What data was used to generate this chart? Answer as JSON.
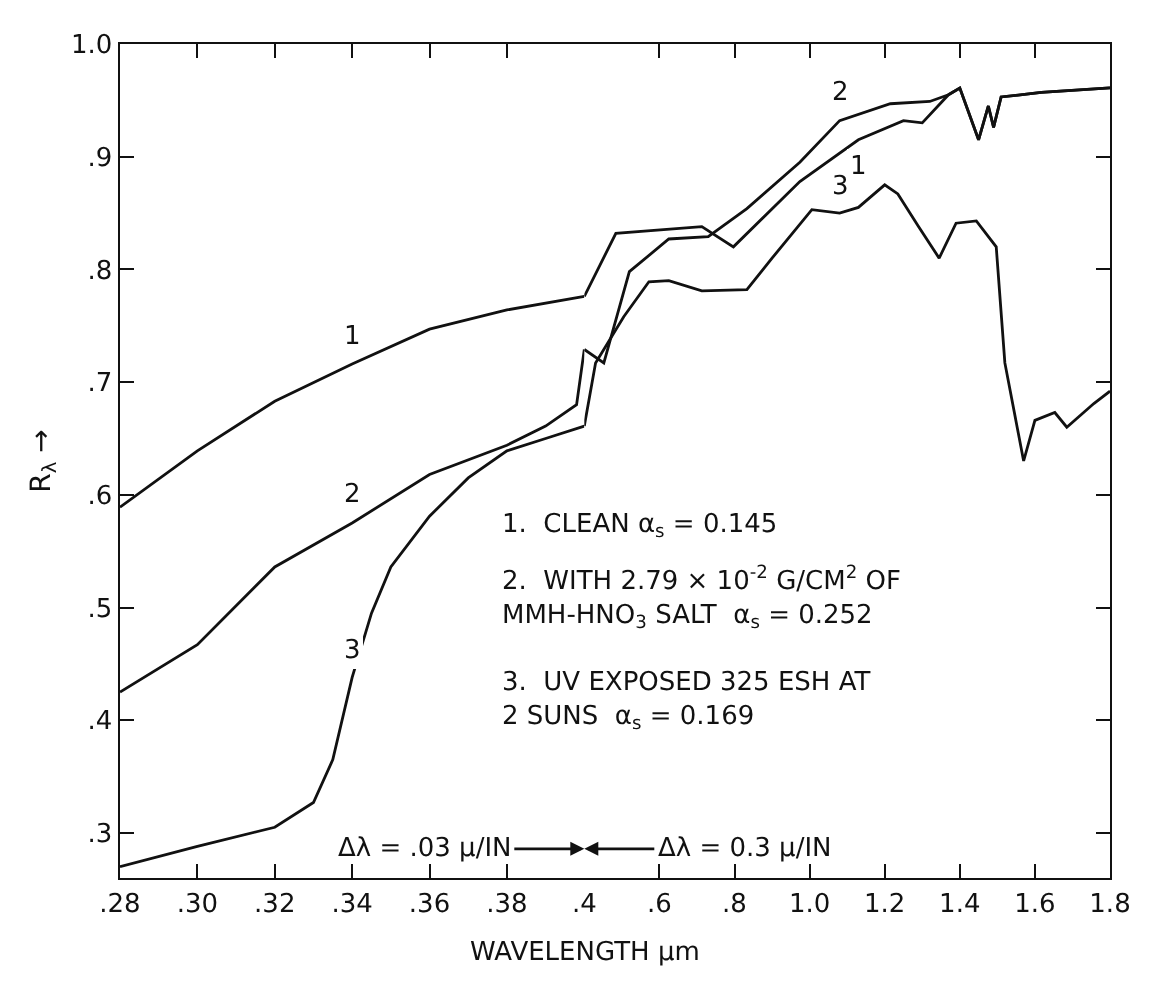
{
  "chart_data": [
    {
      "type": "line",
      "xlabel": "WAVELENGTH µm",
      "ylabel": "R$_{λ}$ →",
      "xlim": [
        0.28,
        0.4
      ],
      "ylim": [
        0.26,
        1.0
      ],
      "xticks": [
        {
          "value": 0.28,
          "label": ".28"
        },
        {
          "value": 0.3,
          "label": ".30"
        },
        {
          "value": 0.32,
          "label": ".32"
        },
        {
          "value": 0.34,
          "label": ".34"
        },
        {
          "value": 0.36,
          "label": ".36"
        },
        {
          "value": 0.38,
          "label": ".38"
        }
      ],
      "yticks": [
        {
          "value": 0.3,
          "label": ".3"
        },
        {
          "value": 0.4,
          "label": ".4"
        },
        {
          "value": 0.5,
          "label": ".5"
        },
        {
          "value": 0.6,
          "label": ".6"
        },
        {
          "value": 0.7,
          "label": ".7"
        },
        {
          "value": 0.8,
          "label": ".8"
        },
        {
          "value": 0.9,
          "label": ".9"
        },
        {
          "value": 1.0,
          "label": "1.0"
        }
      ],
      "series": [
        {
          "name": "1",
          "color": "#111111",
          "x": [
            0.28,
            0.3,
            0.32,
            0.34,
            0.36,
            0.38,
            0.4
          ],
          "values": [
            0.589,
            0.639,
            0.683,
            0.716,
            0.747,
            0.764,
            0.776
          ]
        },
        {
          "name": "2",
          "color": "#111111",
          "x": [
            0.28,
            0.3,
            0.32,
            0.34,
            0.36,
            0.38,
            0.39,
            0.398,
            0.4
          ],
          "values": [
            0.425,
            0.467,
            0.536,
            0.575,
            0.618,
            0.644,
            0.661,
            0.68,
            0.729
          ]
        },
        {
          "name": "3",
          "color": "#111111",
          "x": [
            0.28,
            0.3,
            0.32,
            0.33,
            0.335,
            0.34,
            0.345,
            0.35,
            0.36,
            0.37,
            0.38,
            0.39,
            0.4
          ],
          "values": [
            0.27,
            0.288,
            0.305,
            0.327,
            0.365,
            0.438,
            0.495,
            0.536,
            0.581,
            0.615,
            0.639,
            0.65,
            0.661
          ]
        }
      ],
      "annotations": [
        "Δλ = .03 µ/IN"
      ]
    },
    {
      "type": "line",
      "xlim": [
        0.4,
        1.8
      ],
      "ylim": [
        0.26,
        1.0
      ],
      "tick_labels": "x",
      "xticks": [
        {
          "value": 0.4,
          "label": ".4"
        },
        {
          "value": 0.6,
          "label": ".6"
        },
        {
          "value": 0.8,
          "label": ".8"
        },
        {
          "value": 1.0,
          "label": "1.0"
        },
        1.2,
        1.4,
        1.6,
        1.8
      ],
      "yticks": [
        0.3,
        0.4,
        0.5,
        0.6,
        0.7,
        0.8,
        0.9,
        1.0
      ],
      "series": [
        {
          "name": "1",
          "color": "#111111",
          "x": [
            0.4,
            0.484,
            0.713,
            0.797,
            0.974,
            1.13,
            1.25,
            1.3,
            1.37,
            1.4,
            1.45,
            1.476,
            1.49,
            1.51,
            1.617,
            1.8
          ],
          "values": [
            0.776,
            0.832,
            0.838,
            0.82,
            0.878,
            0.915,
            0.932,
            0.93,
            0.955,
            0.961,
            0.915,
            0.945,
            0.926,
            0.953,
            0.957,
            0.961
          ]
        },
        {
          "name": "2",
          "color": "#111111",
          "x": [
            0.4,
            0.452,
            0.52,
            0.625,
            0.73,
            0.833,
            0.974,
            1.08,
            1.215,
            1.32,
            1.37,
            1.4,
            1.45,
            1.476,
            1.49,
            1.51,
            1.617,
            1.8
          ],
          "values": [
            0.729,
            0.717,
            0.798,
            0.827,
            0.829,
            0.854,
            0.895,
            0.932,
            0.947,
            0.949,
            0.955,
            0.961,
            0.915,
            0.945,
            0.926,
            0.953,
            0.957,
            0.961
          ]
        },
        {
          "name": "3",
          "color": "#111111",
          "x": [
            0.4,
            0.43,
            0.505,
            0.572,
            0.625,
            0.713,
            0.833,
            0.9,
            1.006,
            1.08,
            1.13,
            1.2,
            1.235,
            1.29,
            1.345,
            1.39,
            1.444,
            1.497,
            1.52,
            1.57,
            1.6,
            1.653,
            1.685,
            1.757,
            1.8
          ],
          "values": [
            0.661,
            0.717,
            0.758,
            0.789,
            0.79,
            0.781,
            0.782,
            0.81,
            0.853,
            0.85,
            0.855,
            0.875,
            0.867,
            0.838,
            0.81,
            0.841,
            0.843,
            0.82,
            0.717,
            0.63,
            0.666,
            0.673,
            0.66,
            0.681,
            0.692
          ]
        }
      ],
      "annotations": [
        "Δλ = 0.3 µ/IN",
        "1.  CLEAN α$_{s}$ = 0.145",
        "2.  WITH 2.79 × 10$^{-2}$ G/CM$^{2}$ OF\nMMH-HNO$_{3}$ SALT  α$_{s}$ = 0.252",
        "3.  UV EXPOSED 325 ESH AT\n2 SUNS  α$_{s}$ = 0.169"
      ]
    }
  ]
}
